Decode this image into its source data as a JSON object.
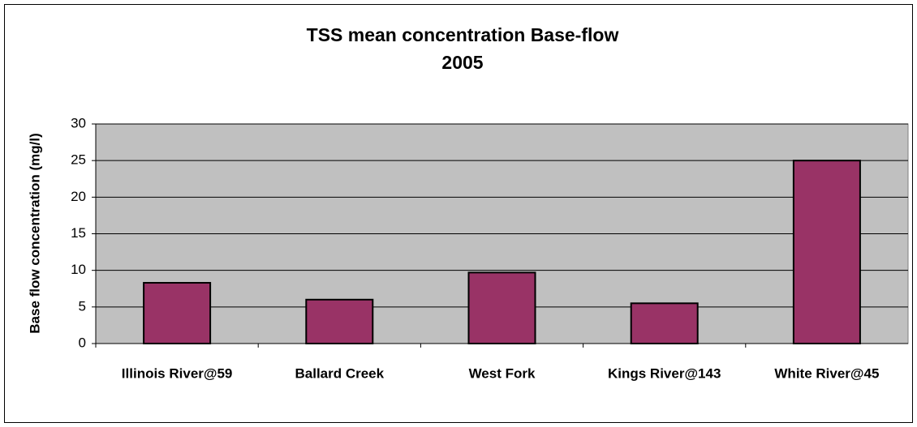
{
  "chart_data": {
    "type": "bar",
    "title": [
      "TSS mean concentration Base-flow",
      "2005"
    ],
    "y_label": "Base flow concentration (mg/l)",
    "categories": [
      "Illinois River@59",
      "Ballard Creek",
      "West Fork",
      "Kings River@143",
      "White River@45"
    ],
    "values": [
      8.3,
      6.0,
      9.7,
      5.5,
      25.0
    ],
    "color": "#993366",
    "ylim": [
      0,
      30
    ],
    "yticks": [
      0,
      5,
      10,
      15,
      20,
      25,
      30
    ],
    "grid": true
  }
}
